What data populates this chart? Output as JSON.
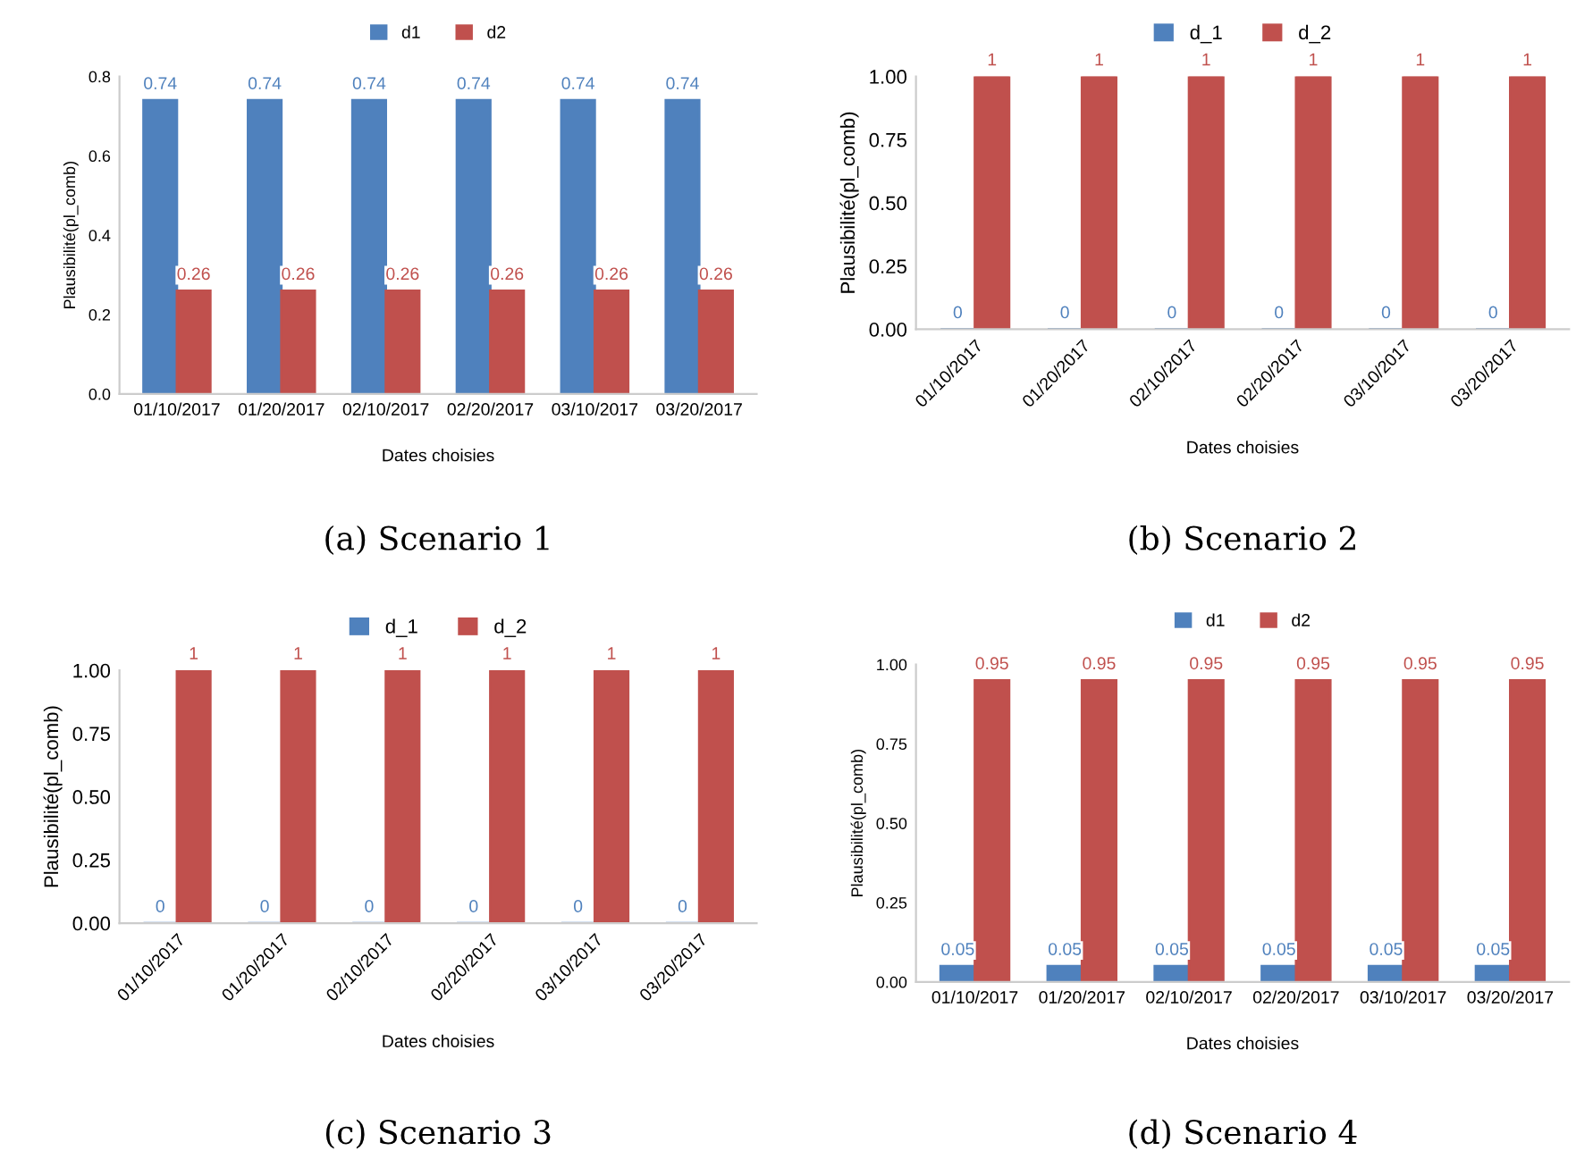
{
  "chart_data": [
    {
      "type": "bar",
      "categories": [
        "01/10/2017",
        "01/20/2017",
        "02/10/2017",
        "02/20/2017",
        "03/10/2017",
        "03/20/2017"
      ],
      "xlabel": "Dates choisies",
      "ylabel": "Plausibilité(pl_comb)",
      "ylim": [
        0,
        0.8
      ],
      "yticks": [
        {
          "value": 0,
          "label": "0.0"
        },
        {
          "value": 0.2,
          "label": "0.2"
        },
        {
          "value": 0.4,
          "label": "0.4"
        },
        {
          "value": 0.6,
          "label": "0.6"
        },
        {
          "value": 0.8,
          "label": "0.8"
        }
      ],
      "series": [
        {
          "name": "d1",
          "color": "#4f81bd",
          "values": [
            0.74,
            0.74,
            0.74,
            0.74,
            0.74,
            0.74
          ]
        },
        {
          "name": "d2",
          "color": "#c0504d",
          "values": [
            0.26,
            0.26,
            0.26,
            0.26,
            0.26,
            0.26
          ]
        }
      ],
      "data_labels": true,
      "legend": "top",
      "annotations": [
        "(a) Scenario 1"
      ]
    },
    {
      "type": "bar",
      "categories": [
        "01/10/2017",
        "01/20/2017",
        "02/10/2017",
        "02/20/2017",
        "03/10/2017",
        "03/20/2017"
      ],
      "xlabel": "Dates choisies",
      "ylabel": "Plausibilité(pl_comb)",
      "ylim": [
        0,
        1
      ],
      "yticks": [
        {
          "value": 0,
          "label": "0.00"
        },
        {
          "value": 0.25,
          "label": "0.25"
        },
        {
          "value": 0.5,
          "label": "0.50"
        },
        {
          "value": 0.75,
          "label": "0.75"
        },
        {
          "value": 1,
          "label": "1.00"
        }
      ],
      "series": [
        {
          "name": "d_1",
          "color": "#4f81bd",
          "values": [
            0,
            0,
            0,
            0,
            0,
            0
          ]
        },
        {
          "name": "d_2",
          "color": "#c0504d",
          "values": [
            1,
            1,
            1,
            1,
            1,
            1
          ]
        }
      ],
      "data_labels": true,
      "legend": "top",
      "annotations": [
        "(b) Scenario 2"
      ]
    },
    {
      "type": "bar",
      "categories": [
        "01/10/2017",
        "01/20/2017",
        "02/10/2017",
        "02/20/2017",
        "03/10/2017",
        "03/20/2017"
      ],
      "xlabel": "Dates choisies",
      "ylabel": "Plausibilité(pl_comb)",
      "ylim": [
        0,
        1
      ],
      "yticks": [
        {
          "value": 0,
          "label": "0.00"
        },
        {
          "value": 0.25,
          "label": "0.25"
        },
        {
          "value": 0.5,
          "label": "0.50"
        },
        {
          "value": 0.75,
          "label": "0.75"
        },
        {
          "value": 1,
          "label": "1.00"
        }
      ],
      "series": [
        {
          "name": "d_1",
          "color": "#4f81bd",
          "values": [
            0,
            0,
            0,
            0,
            0,
            0
          ]
        },
        {
          "name": "d_2",
          "color": "#c0504d",
          "values": [
            1,
            1,
            1,
            1,
            1,
            1
          ]
        }
      ],
      "data_labels": true,
      "legend": "top",
      "annotations": [
        "(c) Scenario 3"
      ]
    },
    {
      "type": "bar",
      "categories": [
        "01/10/2017",
        "01/20/2017",
        "02/10/2017",
        "02/20/2017",
        "03/10/2017",
        "03/20/2017"
      ],
      "xlabel": "Dates choisies",
      "ylabel": "Plausibilité(pl_comb)",
      "ylim": [
        0,
        1
      ],
      "yticks": [
        {
          "value": 0,
          "label": "0.00"
        },
        {
          "value": 0.25,
          "label": "0.25"
        },
        {
          "value": 0.5,
          "label": "0.50"
        },
        {
          "value": 0.75,
          "label": "0.75"
        },
        {
          "value": 1,
          "label": "1.00"
        }
      ],
      "series": [
        {
          "name": "d1",
          "color": "#4f81bd",
          "values": [
            0.05,
            0.05,
            0.05,
            0.05,
            0.05,
            0.05
          ]
        },
        {
          "name": "d2",
          "color": "#c0504d",
          "values": [
            0.95,
            0.95,
            0.95,
            0.95,
            0.95,
            0.95
          ]
        }
      ],
      "data_labels": true,
      "legend": "top",
      "annotations": [
        "(d) Scenario 4"
      ]
    }
  ]
}
